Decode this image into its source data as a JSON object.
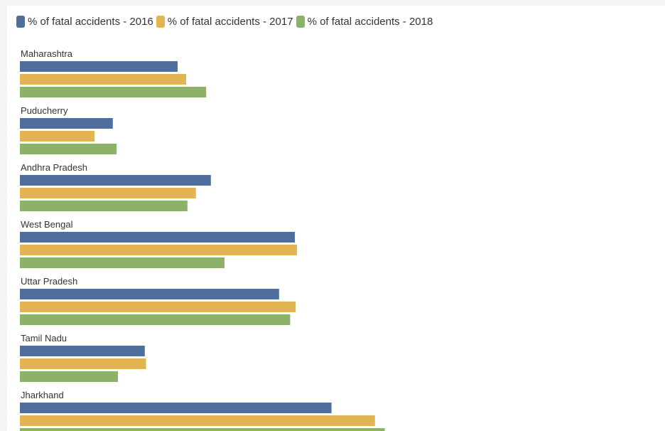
{
  "chart_data": {
    "type": "bar",
    "orientation": "horizontal",
    "categories": [
      "Maharashtra",
      "Puducherry",
      "Andhra Pradesh",
      "West Bengal",
      "Uttar Pradesh",
      "Tamil Nadu",
      "Jharkhand"
    ],
    "series": [
      {
        "name": "% of fatal accidents - 2016",
        "color": "#4e6f9c",
        "values": [
          37.0,
          21.8,
          44.8,
          64.5,
          60.8,
          29.3,
          73.1
        ]
      },
      {
        "name": "% of fatal accidents - 2017",
        "color": "#e2b553",
        "values": [
          39.0,
          17.5,
          41.3,
          65.0,
          64.7,
          29.6,
          83.3
        ]
      },
      {
        "name": "% of fatal accidents - 2018",
        "color": "#8cb168",
        "values": [
          43.7,
          22.7,
          39.3,
          48.0,
          63.4,
          23.0,
          85.6
        ]
      }
    ],
    "xlim": [
      0,
      100
    ],
    "legend_position": "top-left",
    "grid": false
  }
}
